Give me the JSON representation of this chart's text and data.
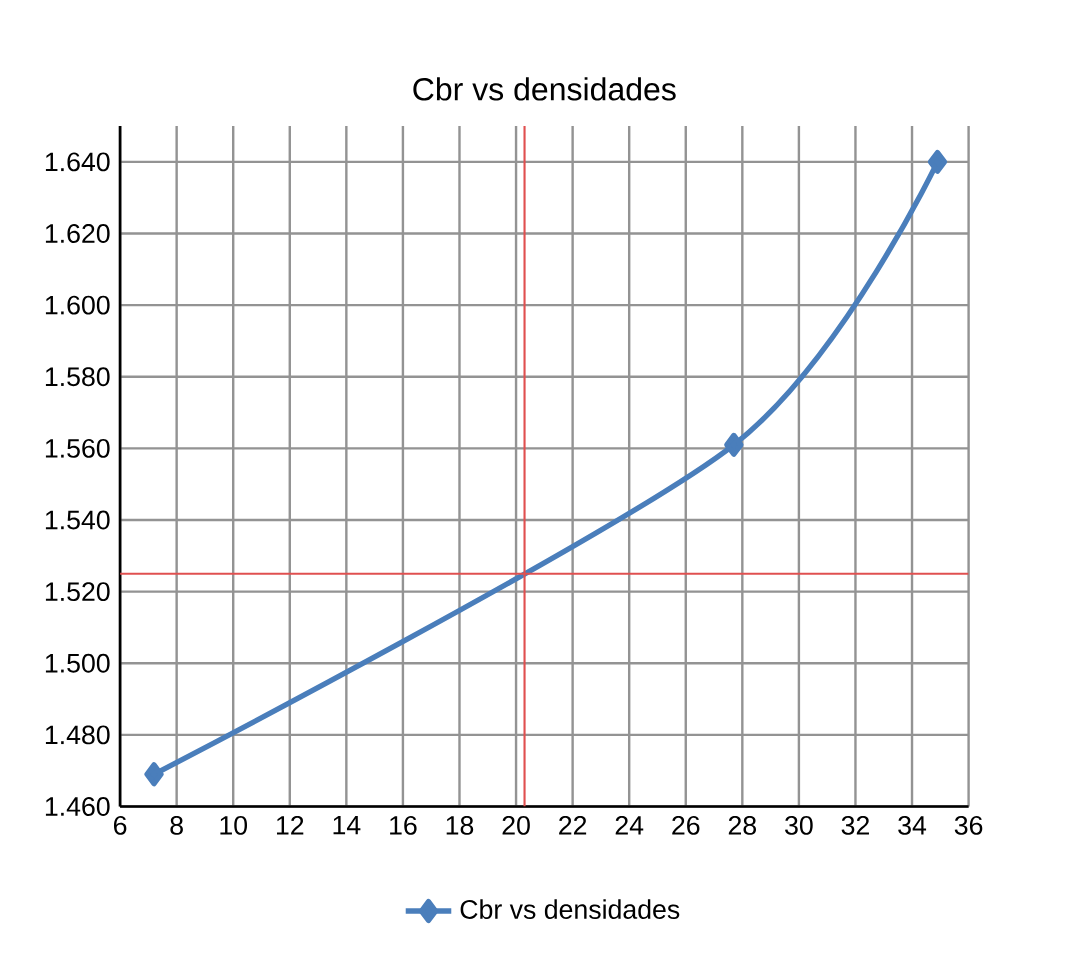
{
  "chart_data": {
    "type": "line",
    "title": "Cbr vs densidades",
    "series": [
      {
        "name": "Cbr vs densidades",
        "color": "#4a7ebb",
        "x": [
          7.2,
          27.7,
          34.9
        ],
        "values": [
          1.469,
          1.561,
          1.64
        ]
      }
    ],
    "xlim": [
      6,
      36
    ],
    "xticks": [
      6,
      8,
      10,
      12,
      14,
      16,
      18,
      20,
      22,
      24,
      26,
      28,
      30,
      32,
      34,
      36
    ],
    "ylim": [
      1.46,
      1.65
    ],
    "yticks": [
      {
        "value": 1.46,
        "label": "1.460"
      },
      {
        "value": 1.48,
        "label": "1.480"
      },
      {
        "value": 1.5,
        "label": "1.500"
      },
      {
        "value": 1.52,
        "label": "1.520"
      },
      {
        "value": 1.54,
        "label": "1.540"
      },
      {
        "value": 1.56,
        "label": "1.560"
      },
      {
        "value": 1.58,
        "label": "1.580"
      },
      {
        "value": 1.6,
        "label": "1.600"
      },
      {
        "value": 1.62,
        "label": "1.620"
      },
      {
        "value": 1.64,
        "label": "1.640"
      }
    ],
    "ref_lines": [
      {
        "axis": "x",
        "value": 20.3,
        "color": "#e05050"
      },
      {
        "axis": "y",
        "value": 1.525,
        "color": "#e05050"
      }
    ],
    "grid": true,
    "legend": "bottom",
    "marker": "diamond",
    "line_style": "solid"
  }
}
